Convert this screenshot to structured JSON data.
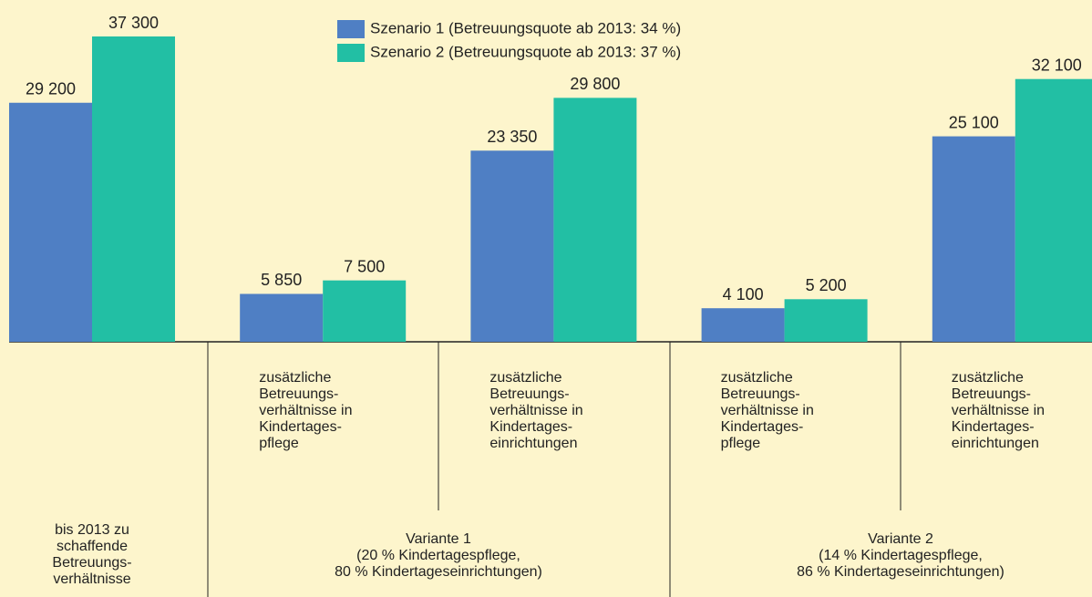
{
  "chart_data": {
    "type": "bar",
    "categories": [
      [
        "bis 2013 zu",
        "schaffende",
        "Betreuungs-",
        "verhältnisse"
      ],
      [
        "zusätzliche",
        "Betreuungs-",
        "verhältnisse in",
        "Kindertages-",
        "pflege"
      ],
      [
        "zusätzliche",
        "Betreuungs-",
        "verhältnisse in",
        "Kindertages-",
        "einrichtungen"
      ],
      [
        "zusätzliche",
        "Betreuungs-",
        "verhältnisse in",
        "Kindertages-",
        "pflege"
      ],
      [
        "zusätzliche",
        "Betreuungs-",
        "verhältnisse in",
        "Kindertages-",
        "einrichtungen"
      ]
    ],
    "group_labels": [
      [
        "Variante 1",
        "(20 % Kindertagespflege,",
        "80 % Kindertageseinrichtungen)"
      ],
      [
        "Variante 2",
        "(14 % Kindertagespflege,",
        "86 % Kindertageseinrichtungen)"
      ]
    ],
    "series": [
      {
        "name": "Szenario 1 (Betreuungsquote ab 2013: 34 %)",
        "color": "#4f7fc4",
        "values": [
          29200,
          5850,
          23350,
          4100,
          25100
        ],
        "value_labels": [
          "29 200",
          "5 850",
          "23 350",
          "4 100",
          "25 100"
        ]
      },
      {
        "name": "Szenario 2 (Betreuungsquote ab 2013: 37 %)",
        "color": "#22bfa4",
        "values": [
          37300,
          7500,
          29800,
          5200,
          32100
        ],
        "value_labels": [
          "37 300",
          "7 500",
          "29 800",
          "5 200",
          "32 100"
        ]
      }
    ]
  }
}
